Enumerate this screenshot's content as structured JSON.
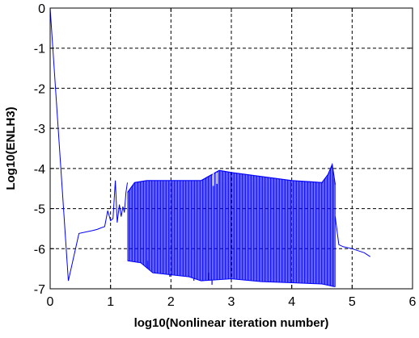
{
  "chart_data": {
    "type": "line",
    "title": "",
    "xlabel": "log10(Nonlinear iteration number)",
    "ylabel": "Log10(ENLH3)",
    "xlim": [
      0,
      6
    ],
    "ylim": [
      -7,
      0
    ],
    "xticks": [
      0,
      1,
      2,
      3,
      4,
      5,
      6
    ],
    "yticks": [
      0,
      -1,
      -2,
      -3,
      -4,
      -5,
      -6,
      -7
    ],
    "xtick_labels": [
      "0",
      "1",
      "2",
      "3",
      "4",
      "5",
      "6"
    ],
    "ytick_labels": [
      "0",
      "-1",
      "-2",
      "-3",
      "-4",
      "-5",
      "-6",
      "-7"
    ],
    "grid": true,
    "grid_style": "dashed",
    "line_color": "#0000ff",
    "series": [
      {
        "points": [
          [
            0,
            0
          ],
          [
            0.301,
            -6.8
          ],
          [
            0.477,
            -5.62
          ],
          [
            0.602,
            -5.58
          ],
          [
            0.699,
            -5.55
          ],
          [
            0.778,
            -5.52
          ],
          [
            0.845,
            -5.48
          ],
          [
            0.903,
            -5.45
          ],
          [
            0.954,
            -5.05
          ],
          [
            1.0,
            -5.3
          ],
          [
            1.04,
            -5.25
          ],
          [
            1.08,
            -4.3
          ],
          [
            1.11,
            -5.35
          ],
          [
            1.146,
            -4.9
          ],
          [
            1.176,
            -5.2
          ],
          [
            1.204,
            -4.95
          ],
          [
            1.23,
            -5.1
          ],
          [
            1.255,
            -4.6
          ],
          [
            1.279,
            -4.35
          ]
        ],
        "band": {
          "x_start": 1.28,
          "x_end": 4.72,
          "upper": [
            [
              1.28,
              -4.6
            ],
            [
              1.4,
              -4.35
            ],
            [
              1.6,
              -4.3
            ],
            [
              2.0,
              -4.3
            ],
            [
              2.5,
              -4.3
            ],
            [
              2.8,
              -4.05
            ],
            [
              3.0,
              -4.1
            ],
            [
              3.5,
              -4.2
            ],
            [
              4.0,
              -4.3
            ],
            [
              4.5,
              -4.35
            ],
            [
              4.6,
              -4.15
            ],
            [
              4.67,
              -3.9
            ],
            [
              4.72,
              -4.4
            ]
          ],
          "lower": [
            [
              1.28,
              -6.3
            ],
            [
              1.5,
              -6.35
            ],
            [
              1.7,
              -6.6
            ],
            [
              2.0,
              -6.65
            ],
            [
              2.3,
              -6.7
            ],
            [
              2.5,
              -6.8
            ],
            [
              3.0,
              -6.75
            ],
            [
              3.5,
              -6.82
            ],
            [
              4.0,
              -6.85
            ],
            [
              4.5,
              -6.88
            ],
            [
              4.72,
              -6.95
            ]
          ],
          "spikes": [
            [
              1.62,
              -6.3
            ],
            [
              1.98,
              -6.7
            ],
            [
              2.38,
              -6.8
            ],
            [
              2.62,
              -6.6
            ],
            [
              2.68,
              -6.9
            ],
            [
              4.68,
              -6.95
            ]
          ],
          "notches": [
            [
              2.7,
              -4.1
            ],
            [
              2.76,
              -4.1
            ]
          ]
        },
        "tail": [
          [
            4.72,
            -5.2
          ],
          [
            4.78,
            -5.9
          ],
          [
            4.85,
            -5.95
          ],
          [
            5.0,
            -6.0
          ],
          [
            5.2,
            -6.1
          ],
          [
            5.3,
            -6.2
          ]
        ]
      }
    ]
  }
}
